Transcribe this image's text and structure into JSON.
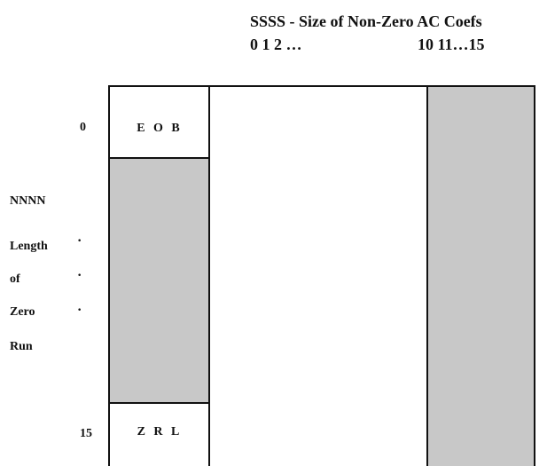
{
  "header": {
    "title": "SSSS - Size of Non-Zero AC Coefs",
    "col_start": "0 1 2 …",
    "col_end": "10  11…15"
  },
  "rows": {
    "first": "0",
    "last": "15"
  },
  "cells": {
    "eob": "E O B",
    "zrl": "Z R L"
  },
  "side_labels": [
    "NNNN",
    "Length",
    "of",
    "Zero",
    "Run"
  ],
  "ellipsis_dots": [
    "·",
    "·",
    "·"
  ],
  "colors": {
    "shade": "#c8c8c8",
    "line": "#111111",
    "background": "#ffffff"
  }
}
